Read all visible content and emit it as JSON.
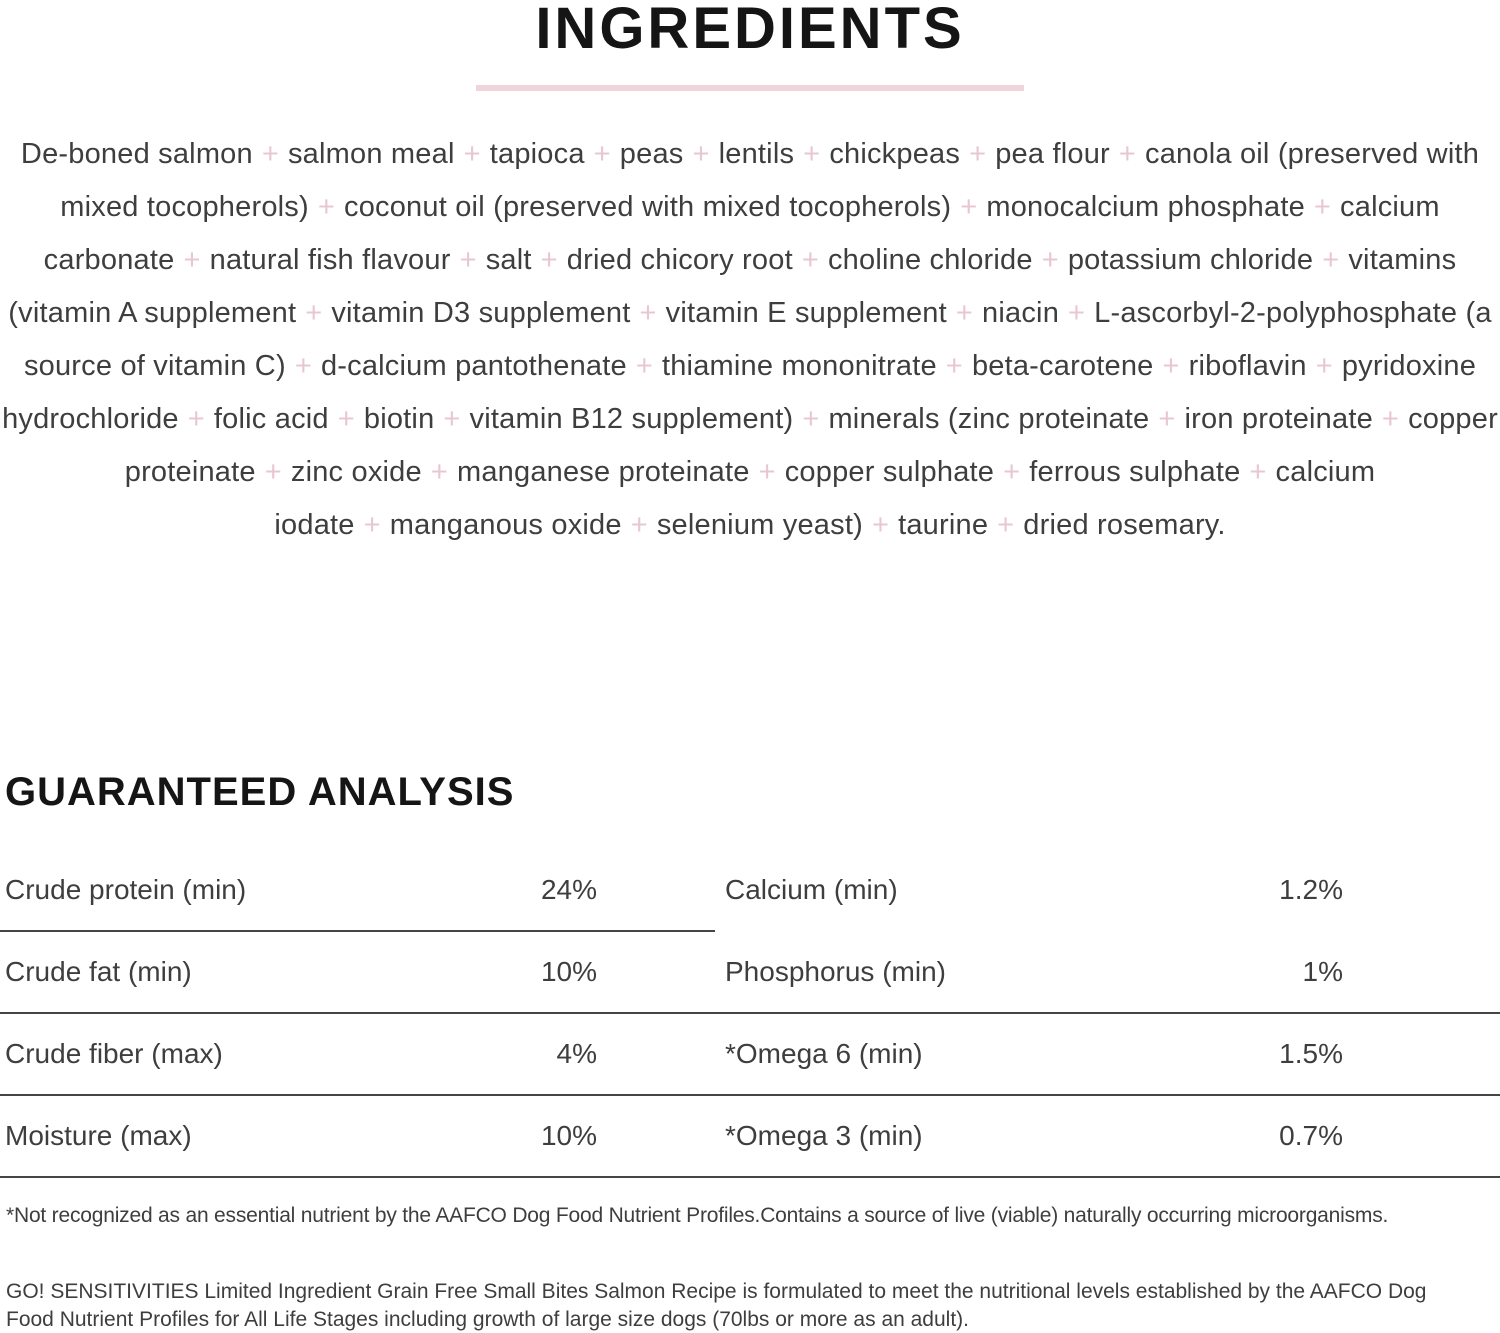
{
  "page": {
    "ingredients_title": "INGREDIENTS",
    "analysis_title": "GUARANTEED ANALYSIS"
  },
  "colors": {
    "accent_pink_plus": "#e9c7d1",
    "title_underline_pink": "#f0d4db",
    "body_text": "#3e3e3e",
    "heading_text": "#151515",
    "divider": "#454545"
  },
  "ingredients": {
    "separator": "+",
    "items": [
      "De-boned salmon",
      "salmon meal",
      "tapioca",
      "peas",
      "lentils",
      "chickpeas",
      "pea flour",
      "canola oil (preserved with mixed tocopherols)",
      "coconut oil (preserved with mixed tocopherols)",
      "monocalcium phosphate",
      "calcium carbonate",
      "natural fish flavour",
      "salt",
      "dried chicory root",
      "choline chloride",
      "potassium chloride",
      "vitamins (vitamin A supplement",
      "vitamin D3 supplement",
      "vitamin E supplement",
      "niacin",
      "L-ascorbyl-2-polyphosphate (a source of vitamin C)",
      "d-calcium pantothenate",
      "thiamine mononitrate",
      "beta-carotene",
      "riboflavin",
      "pyridoxine hydrochloride",
      "folic acid",
      "biotin",
      "vitamin B12 supplement)",
      "minerals (zinc proteinate",
      "iron proteinate",
      "copper proteinate",
      "zinc oxide",
      "manganese proteinate",
      "copper sulphate",
      "ferrous sulphate",
      "calcium iodate",
      "manganous oxide",
      "selenium yeast)",
      "taurine",
      "dried rosemary."
    ]
  },
  "guaranteed_analysis": {
    "rows": [
      {
        "left_label": "Crude protein (min)",
        "left_value": "24%",
        "right_label": "Calcium (min)",
        "right_value": "1.2%",
        "divider": "left"
      },
      {
        "left_label": "Crude fat (min)",
        "left_value": "10%",
        "right_label": "Phosphorus (min)",
        "right_value": "1%",
        "divider": "full"
      },
      {
        "left_label": "Crude fiber (max)",
        "left_value": "4%",
        "right_label": "*Omega 6 (min)",
        "right_value": "1.5%",
        "divider": "full"
      },
      {
        "left_label": "Moisture (max)",
        "left_value": "10%",
        "right_label": "*Omega 3 (min)",
        "right_value": "0.7%",
        "divider": "full"
      }
    ]
  },
  "footnote": "*Not recognized as an essential nutrient by the AAFCO Dog Food Nutrient Profiles.Contains a source of live (viable) naturally occurring microorganisms.",
  "formulation_statement": "GO! SENSITIVITIES Limited Ingredient Grain Free Small Bites Salmon Recipe is formulated to meet the nutritional levels established by the AAFCO Dog Food Nutrient Profiles for All Life Stages including growth of large size dogs (70lbs or more as an adult)."
}
